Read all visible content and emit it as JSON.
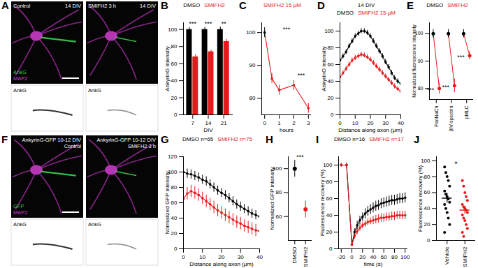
{
  "images": [
    {
      "panel": "A",
      "panes": [
        {
          "top_left": [
            "Control"
          ],
          "top_right": [
            "14 DIV"
          ],
          "channels": [
            {
              "text": "AnkG",
              "color": "#39c44a"
            },
            {
              "text": "MAP2",
              "color": "#d23cd2"
            }
          ],
          "bottom": "AnkG"
        },
        {
          "top_left": [
            "SMIFH2 3 h"
          ],
          "top_right": [
            "14 DIV"
          ],
          "bottom": "AnkG"
        }
      ]
    },
    {
      "panel": "F",
      "panes": [
        {
          "top_right": [
            "AnkyrinG-GFP 10-12 DIV",
            "Control"
          ],
          "channels": [
            {
              "text": "GFP",
              "color": "#39c44a"
            },
            {
              "text": "MAP2",
              "color": "#d23cd2"
            }
          ],
          "bottom": "AnkG"
        },
        {
          "top_right": [
            "AnkyrinG-GFP 10-12 DIV",
            "SMIFH2 3 h"
          ],
          "bottom": "AnkG"
        }
      ]
    }
  ],
  "chart_data": [
    {
      "panel": "B",
      "type": "bar",
      "categories": [
        "7",
        "14",
        "21"
      ],
      "xlabel": "DIV",
      "ylabel": "AnkyrinG intensity",
      "ylim": [
        0,
        108
      ],
      "yticks": [
        0,
        20,
        40,
        60,
        80,
        100
      ],
      "series": [
        {
          "name": "DMSO",
          "color": "#000000",
          "values": [
            100,
            100,
            100
          ],
          "errors": [
            2.5,
            2.5,
            3
          ]
        },
        {
          "name": "SMIFH2",
          "color": "#e41a1c",
          "values": [
            68,
            74,
            86
          ],
          "errors": [
            2.5,
            2,
            2.5
          ]
        }
      ],
      "significance": [
        "***",
        "***",
        "**"
      ]
    },
    {
      "panel": "C",
      "type": "line",
      "title": "SMIFH2 15 μM",
      "color": "#e41a1c",
      "x": [
        0,
        0.5,
        1,
        2,
        3
      ],
      "values": [
        100,
        86,
        82.5,
        84,
        77
      ],
      "errors": [
        1.5,
        1.5,
        1.5,
        1.5,
        1.5
      ],
      "colors": [
        "#000000",
        "#e41a1c",
        "#e41a1c",
        "#e41a1c",
        "#e41a1c"
      ],
      "xlabel": "hours",
      "xlim": [
        -0.2,
        3.2
      ],
      "xticks": [
        0,
        1,
        2,
        3
      ],
      "ylim": [
        75,
        103
      ],
      "yticks": [
        80,
        90,
        100
      ],
      "annotations": [
        {
          "text": "***",
          "x": 1.5,
          "y": 101
        },
        {
          "text": "***",
          "x": 2.5,
          "y": 87
        }
      ]
    },
    {
      "panel": "D",
      "type": "line",
      "title": "14 DIV",
      "x": [
        0,
        2,
        4,
        6,
        8,
        10,
        12,
        14,
        16,
        18,
        20,
        22,
        24,
        26,
        28,
        30,
        32,
        34,
        36,
        38,
        40
      ],
      "xlabel": "Distance along axon (μm)",
      "ylabel": "AnkyrinG intensity",
      "xlim": [
        0,
        40
      ],
      "xticks": [
        0,
        10,
        20,
        30,
        40
      ],
      "ylim": [
        0,
        110
      ],
      "yticks": [
        0,
        20,
        40,
        60,
        80,
        100
      ],
      "series": [
        {
          "name": "DMSO",
          "color": "#000000",
          "values": [
            65,
            70,
            75,
            82,
            88,
            94,
            97,
            100,
            100,
            98,
            94,
            88,
            82,
            76,
            70,
            63,
            57,
            50,
            44,
            40,
            37
          ],
          "errors": [
            3,
            3,
            3,
            3,
            3,
            3,
            3,
            3,
            3,
            3,
            3,
            3,
            3,
            3,
            3,
            3,
            3,
            3,
            3,
            3,
            3
          ]
        },
        {
          "name": "SMIFH2 15 μM",
          "color": "#e41a1c",
          "values": [
            45,
            50,
            55,
            60,
            65,
            68,
            70,
            72,
            71,
            69,
            66,
            62,
            58,
            54,
            50,
            46,
            42,
            38,
            34,
            31,
            28
          ],
          "errors": [
            3,
            3,
            3,
            3,
            3,
            3,
            3,
            3,
            3,
            3,
            3,
            3,
            3,
            3,
            3,
            3,
            3,
            3,
            3,
            3,
            3
          ]
        }
      ]
    },
    {
      "panel": "E",
      "type": "dot",
      "categories": [
        "PanNaCh",
        "βIV-spectrin",
        "pMLC"
      ],
      "ylabel": "Normalized fluorescence intensity",
      "ylim": [
        76,
        104
      ],
      "yticks": [
        80,
        90,
        100
      ],
      "series": [
        {
          "name": "DMSO",
          "color": "#000000",
          "values": [
            100,
            100,
            100
          ],
          "errors": [
            1.5,
            1.5,
            1.5
          ]
        },
        {
          "name": "SMIFH2",
          "color": "#e41a1c",
          "values": [
            80,
            81,
            92
          ],
          "errors": [
            2,
            2.5,
            1.5
          ]
        }
      ],
      "significance": [
        "***",
        "***",
        "***"
      ]
    },
    {
      "panel": "G",
      "type": "line",
      "x": [
        0,
        2,
        4,
        6,
        8,
        10,
        12,
        14,
        16,
        18,
        20,
        22,
        24,
        26,
        28,
        30,
        32,
        34,
        36,
        38,
        40
      ],
      "xlabel": "Distance along axon (μm)",
      "ylabel": "Normalized GFP intensity",
      "xlim": [
        0,
        40
      ],
      "xticks": [
        0,
        10,
        20,
        30,
        40
      ],
      "ylim": [
        0,
        120
      ],
      "yticks": [
        0,
        20,
        40,
        60,
        80,
        100,
        120
      ],
      "series": [
        {
          "name": "DMSO",
          "n_label": "n=65",
          "color": "#000000",
          "values": [
            100,
            98,
            97,
            95,
            93,
            90,
            88,
            84,
            80,
            76,
            73,
            70,
            66,
            62,
            58,
            55,
            52,
            49,
            46,
            44,
            42
          ],
          "errors": [
            6,
            6,
            6,
            6,
            6,
            6,
            6,
            6,
            6,
            6,
            6,
            6,
            6,
            6,
            6,
            6,
            6,
            6,
            6,
            6,
            6
          ]
        },
        {
          "name": "SMIFH2",
          "n_label": "n=75",
          "color": "#e41a1c",
          "values": [
            65,
            72,
            75,
            73,
            70,
            66,
            62,
            58,
            54,
            50,
            47,
            44,
            41,
            38,
            35,
            33,
            30,
            28,
            26,
            24,
            23
          ],
          "errors": [
            8,
            8,
            8,
            8,
            8,
            8,
            8,
            8,
            8,
            8,
            8,
            8,
            8,
            8,
            8,
            8,
            8,
            8,
            8,
            8,
            8
          ]
        }
      ]
    },
    {
      "panel": "H",
      "type": "dot",
      "categories": [
        "DMSO",
        "SMIFH2"
      ],
      "values": [
        100,
        66
      ],
      "errors": [
        7,
        7
      ],
      "colors": [
        "#000000",
        "#e41a1c"
      ],
      "ylabel": "Normalized GFP intensity",
      "ylim": [
        40,
        110
      ],
      "yticks": [
        60,
        80,
        100
      ],
      "significance": "***"
    },
    {
      "panel": "I",
      "type": "line",
      "x": [
        -20,
        -10,
        0,
        5,
        10,
        15,
        20,
        25,
        30,
        35,
        40,
        45,
        50,
        55,
        60,
        65,
        70,
        75,
        80,
        85,
        90,
        95,
        100
      ],
      "xlabel": "time (s)",
      "ylabel": "Fluorescence recovery (%)",
      "xlim": [
        -25,
        105
      ],
      "xticks": [
        -20,
        0,
        20,
        40,
        60,
        80,
        100
      ],
      "ylim": [
        0,
        110
      ],
      "yticks": [
        0,
        20,
        40,
        60,
        80,
        100
      ],
      "series": [
        {
          "name": "DMSO",
          "n_label": "n=16",
          "color": "#000000",
          "values": [
            100,
            100,
            5,
            20,
            28,
            34,
            38,
            42,
            45,
            47,
            49,
            51,
            52,
            54,
            55,
            56,
            57,
            58,
            58,
            59,
            60,
            60,
            61
          ],
          "errors": [
            2,
            2,
            1,
            4,
            5,
            5,
            5,
            6,
            6,
            6,
            6,
            6,
            6,
            6,
            6,
            6,
            6,
            6,
            6,
            6,
            6,
            6,
            6
          ]
        },
        {
          "name": "SMIFH2",
          "n_label": "n=17",
          "color": "#e41a1c",
          "values": [
            100,
            100,
            5,
            15,
            21,
            25,
            28,
            30,
            32,
            33,
            34,
            35,
            36,
            37,
            37,
            38,
            38,
            39,
            39,
            40,
            40,
            40,
            40
          ],
          "errors": [
            2,
            2,
            1,
            3,
            4,
            4,
            4,
            4,
            4,
            4,
            5,
            5,
            5,
            5,
            5,
            5,
            5,
            5,
            5,
            5,
            5,
            5,
            5
          ]
        }
      ]
    },
    {
      "panel": "J",
      "type": "strip",
      "categories": [
        "Vehicle",
        "SMIFH2"
      ],
      "points": [
        [
          92,
          85,
          80,
          75,
          68,
          62,
          58,
          55,
          52,
          48,
          45,
          40,
          35,
          28,
          20,
          10
        ],
        [
          75,
          68,
          60,
          55,
          50,
          45,
          42,
          40,
          38,
          35,
          32,
          28,
          25,
          20,
          15,
          10,
          5
        ]
      ],
      "means": [
        53,
        38
      ],
      "errors": [
        6,
        5
      ],
      "colors": [
        "#000000",
        "#e41a1c"
      ],
      "ylabel": "Fluorescence recovery (%)",
      "ylim": [
        0,
        105
      ],
      "yticks": [
        0,
        20,
        40,
        60,
        80,
        100
      ],
      "significance": "*"
    }
  ]
}
